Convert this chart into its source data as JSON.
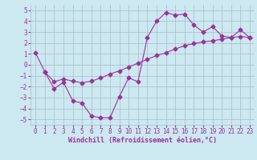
{
  "line1_x": [
    0,
    1,
    2,
    3,
    4,
    5,
    6,
    7,
    8,
    9,
    10,
    11,
    12,
    13,
    14,
    15,
    16,
    17,
    18,
    19,
    20,
    21,
    22,
    23
  ],
  "line1_y": [
    1.1,
    -0.65,
    -2.2,
    -1.6,
    -3.3,
    -3.5,
    -4.7,
    -4.85,
    -4.85,
    -2.9,
    -1.2,
    -1.55,
    2.5,
    4.0,
    4.8,
    4.55,
    4.65,
    3.65,
    3.0,
    3.5,
    2.65,
    2.5,
    3.2,
    2.5
  ],
  "line2_x": [
    1,
    2,
    3,
    4,
    5,
    6,
    7,
    8,
    9,
    10,
    11,
    12,
    13,
    14,
    15,
    16,
    17,
    18,
    19,
    20,
    21,
    22,
    23
  ],
  "line2_y": [
    -0.65,
    -1.55,
    -1.3,
    -1.5,
    -1.65,
    -1.5,
    -1.2,
    -0.85,
    -0.55,
    -0.2,
    0.15,
    0.5,
    0.85,
    1.1,
    1.45,
    1.75,
    1.95,
    2.1,
    2.2,
    2.35,
    2.5,
    2.6,
    2.5
  ],
  "color": "#993399",
  "bg_color": "#cce8f0",
  "grid_color": "#aabbcc",
  "xlabel": "Windchill (Refroidissement éolien,°C)",
  "xlim": [
    -0.5,
    23.5
  ],
  "ylim": [
    -5.5,
    5.5
  ],
  "yticks": [
    -5,
    -4,
    -3,
    -2,
    -1,
    0,
    1,
    2,
    3,
    4,
    5
  ],
  "xticks": [
    0,
    1,
    2,
    3,
    4,
    5,
    6,
    7,
    8,
    9,
    10,
    11,
    12,
    13,
    14,
    15,
    16,
    17,
    18,
    19,
    20,
    21,
    22,
    23
  ],
  "marker": "D",
  "markersize": 2.5,
  "linewidth": 0.8,
  "tick_fontsize": 5.5,
  "xlabel_fontsize": 6.0
}
